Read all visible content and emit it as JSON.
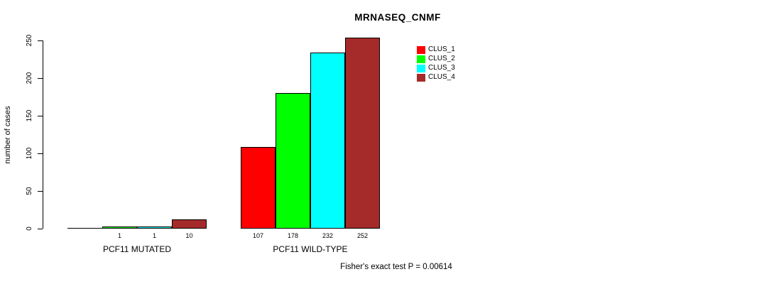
{
  "chart_data": {
    "type": "bar",
    "title": "MRNASEQ_CNMF",
    "xlabel": "",
    "ylabel": "number of cases",
    "ylim": [
      0,
      250
    ],
    "yticks": [
      0,
      50,
      100,
      150,
      200,
      250
    ],
    "grid": false,
    "legend_position": "top-right",
    "legend": [
      {
        "label": "CLUS_1",
        "color": "#FF0000"
      },
      {
        "label": "CLUS_2",
        "color": "#00FF00"
      },
      {
        "label": "CLUS_3",
        "color": "#00FFFF"
      },
      {
        "label": "CLUS_4",
        "color": "#A52A2A"
      }
    ],
    "groups": [
      {
        "label": "PCF11 MUTATED",
        "values": [
          0,
          1,
          1,
          10
        ],
        "bar_labels": [
          "",
          "1",
          "1",
          "10"
        ]
      },
      {
        "label": "PCF11 WILD-TYPE",
        "values": [
          107,
          178,
          232,
          252
        ],
        "bar_labels": [
          "107",
          "178",
          "232",
          "252"
        ]
      }
    ],
    "annotation": "Fisher's exact test P = 0.00614"
  }
}
